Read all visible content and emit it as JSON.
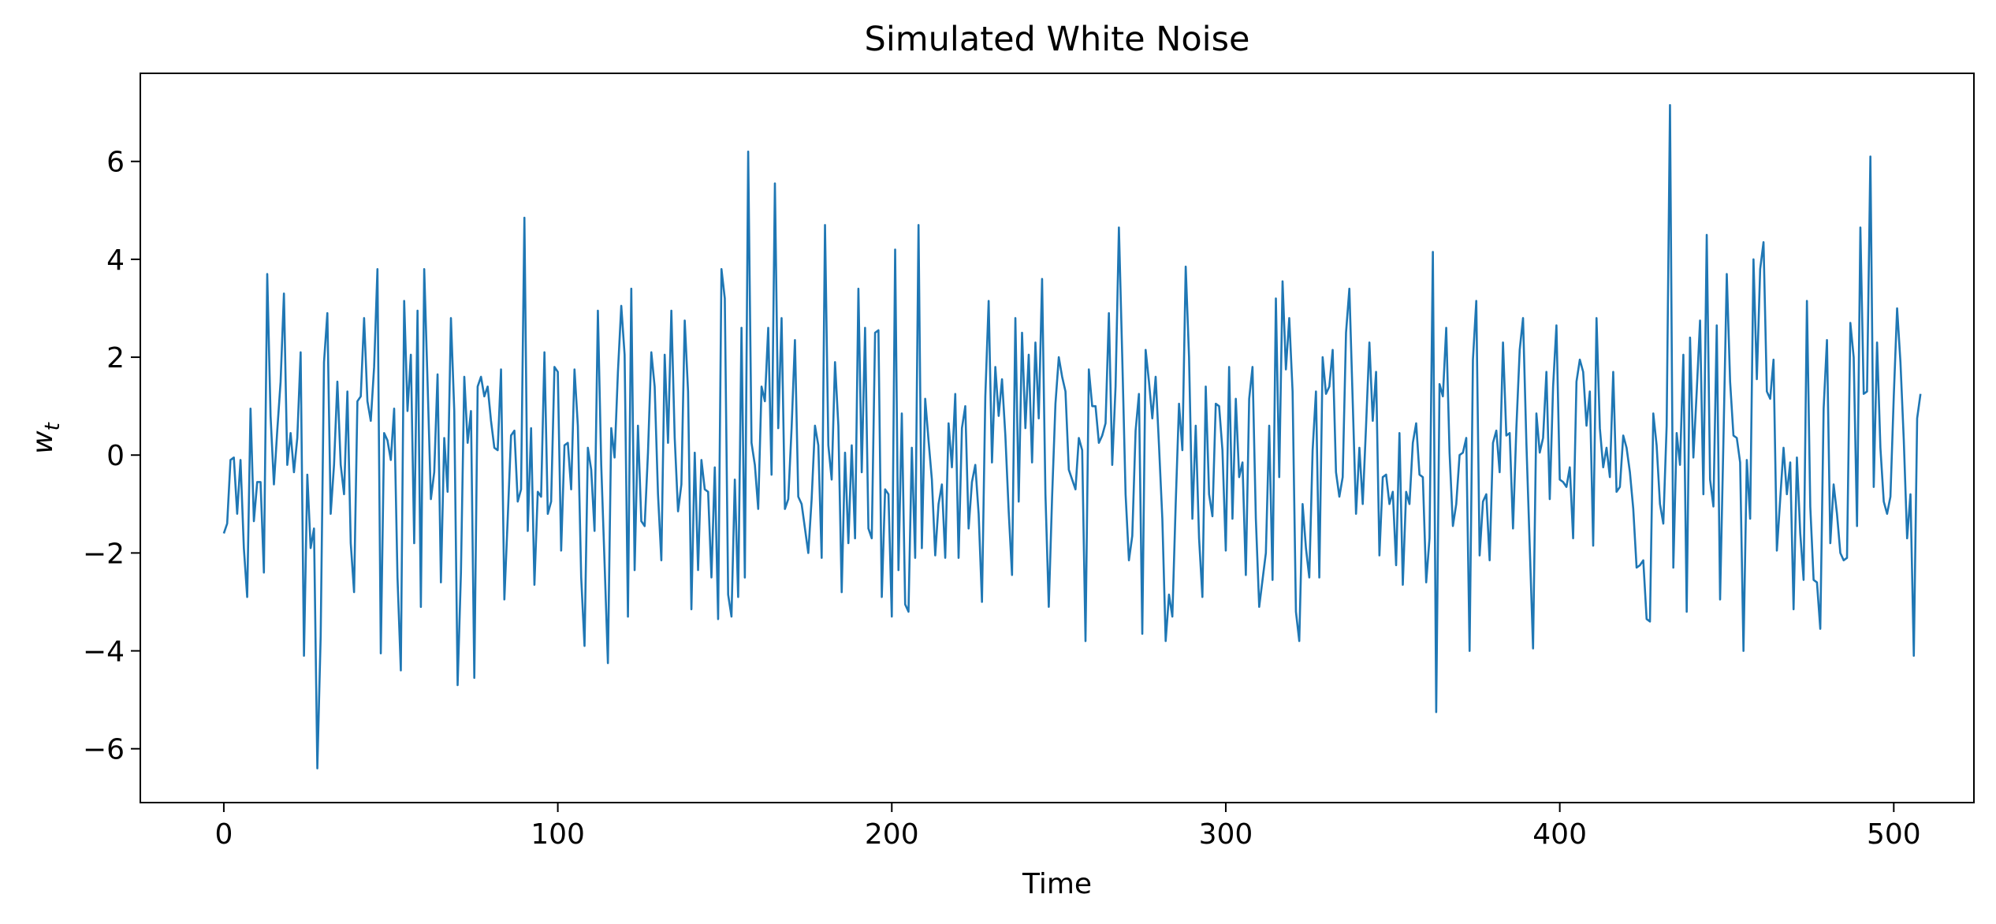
{
  "chart_data": {
    "type": "line",
    "title": "Simulated White Noise",
    "xlabel": "Time",
    "ylabel_main": "w",
    "ylabel_sub": "t",
    "xlim": [
      -25,
      524
    ],
    "ylim": [
      -7.1,
      7.8
    ],
    "x_ticks": [
      0,
      100,
      200,
      300,
      400,
      500
    ],
    "y_ticks": [
      -6,
      -4,
      -2,
      0,
      2,
      4,
      6
    ],
    "x_tick_labels": [
      "0",
      "100",
      "200",
      "300",
      "400",
      "500"
    ],
    "y_tick_labels": [
      "−6",
      "−4",
      "−2",
      "0",
      "2",
      "4",
      "6"
    ],
    "grid": false,
    "line_color": "#1f77b4",
    "series": [
      {
        "x_start": 0,
        "x_step": 1,
        "values": [
          -1.6,
          -1.4,
          -0.1,
          -0.05,
          -1.2,
          -0.1,
          -1.9,
          -2.9,
          0.95,
          -1.35,
          -0.55,
          -0.55,
          -2.4,
          3.7,
          0.8,
          -0.6,
          0.5,
          1.5,
          3.3,
          -0.2,
          0.45,
          -0.35,
          0.35,
          2.1,
          -4.1,
          -0.4,
          -1.9,
          -1.5,
          -6.4,
          -3.7,
          1.9,
          2.9,
          -1.2,
          -0.2,
          1.5,
          -0.2,
          -0.8,
          1.3,
          -1.8,
          -2.8,
          1.1,
          1.2,
          2.8,
          1.1,
          0.7,
          1.8,
          3.8,
          -4.05,
          0.45,
          0.3,
          -0.1,
          0.95,
          -2.5,
          -4.4,
          3.15,
          0.9,
          2.05,
          -1.8,
          2.95,
          -3.1,
          3.8,
          1.5,
          -0.9,
          -0.35,
          1.65,
          -2.6,
          0.35,
          -0.75,
          2.8,
          0.9,
          -4.7,
          -2.4,
          1.6,
          0.25,
          0.9,
          -4.55,
          1.4,
          1.6,
          1.2,
          1.4,
          0.7,
          0.15,
          0.1,
          1.75,
          -2.95,
          -1.3,
          0.4,
          0.5,
          -0.95,
          -0.7,
          4.85,
          -1.55,
          0.55,
          -2.65,
          -0.75,
          -0.85,
          2.1,
          -1.2,
          -0.95,
          1.8,
          1.7,
          -1.95,
          0.2,
          0.25,
          -0.7,
          1.75,
          0.6,
          -2.5,
          -3.9,
          0.15,
          -0.3,
          -1.55,
          2.95,
          -0.2,
          -2.2,
          -4.25,
          0.55,
          -0.05,
          1.7,
          3.05,
          2.05,
          -3.3,
          3.4,
          -2.35,
          0.6,
          -1.35,
          -1.45,
          0.05,
          2.1,
          1.4,
          -0.8,
          -2.15,
          2.05,
          0.25,
          2.95,
          0.35,
          -1.15,
          -0.6,
          2.75,
          1.3,
          -3.15,
          0.05,
          -2.35,
          -0.1,
          -0.7,
          -0.75,
          -2.5,
          -0.25,
          -3.35,
          3.8,
          3.2,
          -2.85,
          -3.3,
          -0.5,
          -2.9,
          2.6,
          -2.5,
          6.2,
          0.25,
          -0.2,
          -1.1,
          1.4,
          1.1,
          2.6,
          -0.4,
          5.55,
          0.55,
          2.8,
          -1.1,
          -0.9,
          0.55,
          2.35,
          -0.85,
          -1.0,
          -1.5,
          -2.0,
          -0.9,
          0.6,
          0.2,
          -2.1,
          4.7,
          0.2,
          -0.5,
          1.9,
          0.6,
          -2.8,
          0.05,
          -1.8,
          0.2,
          -1.7,
          3.4,
          -0.35,
          2.6,
          -1.5,
          -1.7,
          2.5,
          2.55,
          -2.9,
          -0.7,
          -0.8,
          -3.3,
          4.2,
          -2.35,
          0.85,
          -3.05,
          -3.2,
          0.15,
          -2.1,
          4.7,
          -1.9,
          1.15,
          0.3,
          -0.5,
          -2.05,
          -1.0,
          -0.6,
          -2.1,
          0.65,
          -0.25,
          1.25,
          -2.1,
          0.55,
          1.0,
          -1.5,
          -0.55,
          -0.2,
          -1.2,
          -3.0,
          1.2,
          3.15,
          -0.15,
          1.8,
          0.8,
          1.55,
          0.4,
          -1.15,
          -2.45,
          2.8,
          -0.95,
          2.5,
          0.55,
          2.05,
          -0.15,
          2.3,
          0.75,
          3.6,
          -0.8,
          -3.1,
          -0.85,
          1.05,
          2.0,
          1.6,
          1.3,
          -0.3,
          -0.5,
          -0.7,
          0.35,
          0.1,
          -3.8,
          1.75,
          1.0,
          1.0,
          0.25,
          0.4,
          0.65,
          2.9,
          -0.2,
          1.4,
          4.65,
          2.0,
          -0.8,
          -2.15,
          -1.65,
          0.5,
          1.25,
          -3.65,
          2.15,
          1.5,
          0.75,
          1.6,
          0.2,
          -1.3,
          -3.8,
          -2.85,
          -3.3,
          -1.0,
          1.05,
          0.1,
          3.85,
          2.0,
          -1.3,
          0.6,
          -1.7,
          -2.9,
          1.4,
          -0.8,
          -1.25,
          1.05,
          1.0,
          0.1,
          -1.95,
          1.8,
          -1.3,
          1.15,
          -0.45,
          -0.15,
          -2.45,
          1.15,
          1.8,
          -1.3,
          -3.1,
          -2.55,
          -2.0,
          0.6,
          -2.55,
          3.2,
          -0.45,
          3.55,
          1.75,
          2.8,
          1.3,
          -3.2,
          -3.8,
          -1.0,
          -1.9,
          -2.5,
          0.1,
          1.3,
          -2.5,
          2.0,
          1.25,
          1.4,
          2.15,
          -0.35,
          -0.85,
          -0.45,
          2.5,
          3.4,
          1.1,
          -1.2,
          0.15,
          -1.0,
          0.6,
          2.3,
          0.7,
          1.7,
          -2.05,
          -0.45,
          -0.4,
          -1.0,
          -0.75,
          -2.25,
          0.45,
          -2.65,
          -0.75,
          -1.0,
          0.25,
          0.65,
          -0.4,
          -0.45,
          -2.6,
          -1.7,
          4.15,
          -5.25,
          1.45,
          1.2,
          2.6,
          0.05,
          -1.45,
          -1.0,
          0.0,
          0.05,
          0.35,
          -4.0,
          1.95,
          3.15,
          -2.05,
          -0.95,
          -0.8,
          -2.15,
          0.25,
          0.5,
          -0.35,
          2.3,
          0.4,
          0.45,
          -1.5,
          0.55,
          2.15,
          2.8,
          0.25,
          -1.85,
          -3.95,
          0.85,
          0.05,
          0.35,
          1.7,
          -0.9,
          1.4,
          2.65,
          -0.5,
          -0.55,
          -0.65,
          -0.25,
          -1.7,
          1.5,
          1.95,
          1.7,
          0.6,
          1.3,
          -1.85,
          2.8,
          0.55,
          -0.25,
          0.15,
          -0.45,
          1.7,
          -0.75,
          -0.65,
          0.4,
          0.15,
          -0.35,
          -1.1,
          -2.3,
          -2.25,
          -2.15,
          -3.35,
          -3.4,
          0.85,
          0.2,
          -1.0,
          -1.4,
          0.6,
          7.15,
          -2.3,
          0.45,
          -0.2,
          2.05,
          -3.2,
          2.4,
          -0.05,
          1.3,
          2.75,
          -0.8,
          4.5,
          -0.5,
          -1.05,
          2.65,
          -2.95,
          0.3,
          3.7,
          1.5,
          0.4,
          0.35,
          -0.15,
          -4.0,
          -0.1,
          -1.3,
          4.0,
          1.55,
          3.8,
          4.35,
          1.3,
          1.15,
          1.95,
          -1.95,
          -0.9,
          0.15,
          -0.8,
          -0.15,
          -3.15,
          -0.05,
          -1.6,
          -2.55,
          3.15,
          -1.05,
          -2.55,
          -2.6,
          -3.55,
          0.95,
          2.35,
          -1.8,
          -0.6,
          -1.2,
          -2.0,
          -2.15,
          -2.1,
          2.7,
          2.0,
          -1.45,
          4.65,
          1.25,
          1.3,
          6.1,
          -0.65,
          2.3,
          0.15,
          -0.95,
          -1.2,
          -0.85,
          1.2,
          3.0,
          1.9,
          0.3,
          -1.7,
          -0.8,
          -4.1,
          0.75,
          1.25
        ]
      }
    ]
  }
}
